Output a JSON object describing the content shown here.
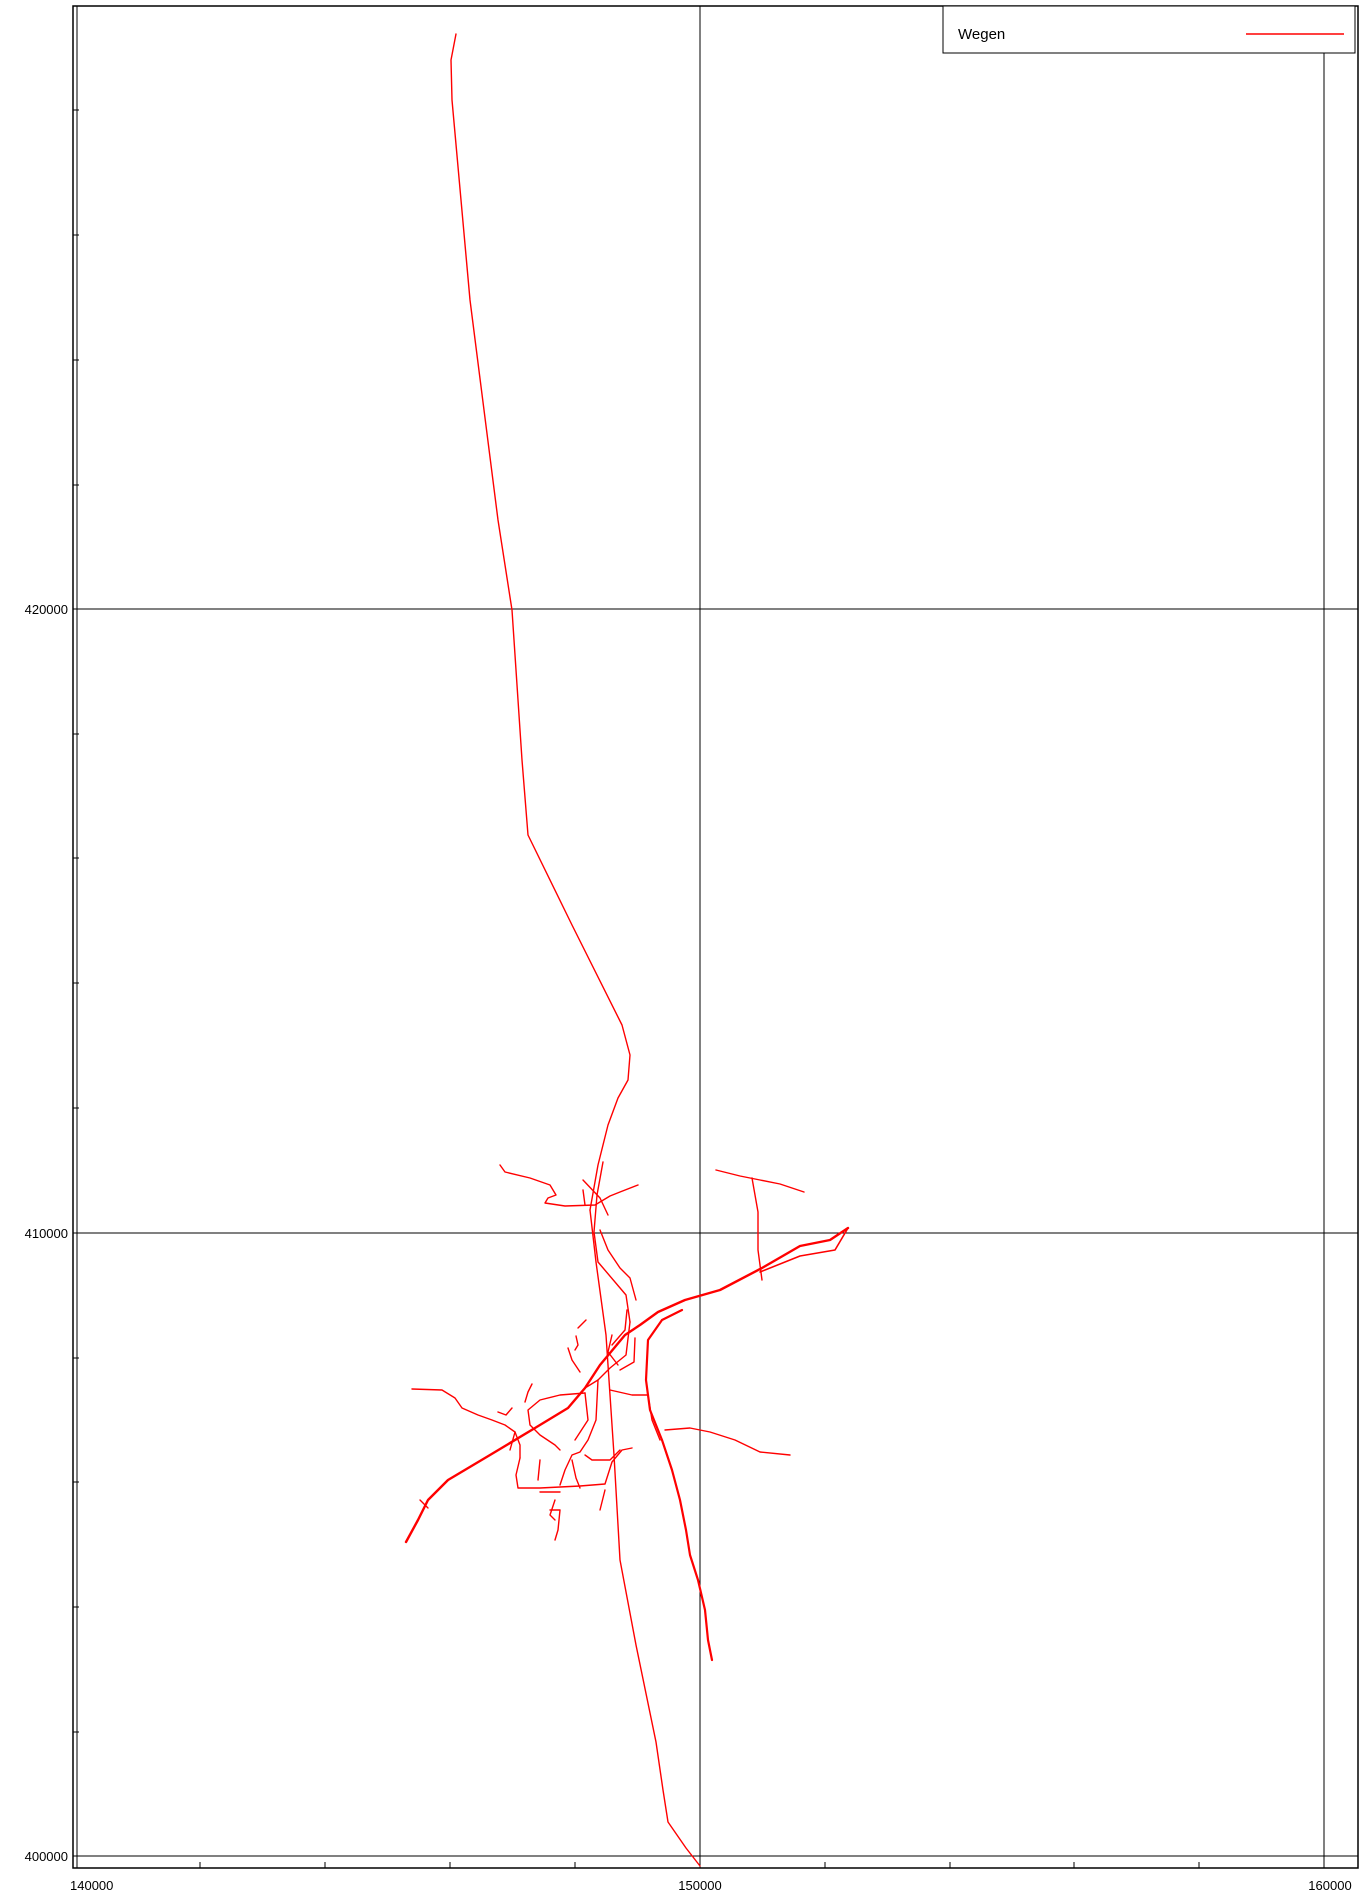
{
  "legend": {
    "label": "Wegen",
    "line_color": "#ff0000"
  },
  "axes": {
    "x_ticks": [
      "140000",
      "150000",
      "160000"
    ],
    "y_ticks": [
      "420000",
      "410000",
      "400000"
    ]
  },
  "colors": {
    "road": "#ff0000",
    "grid": "#000000",
    "background": "#ffffff"
  }
}
